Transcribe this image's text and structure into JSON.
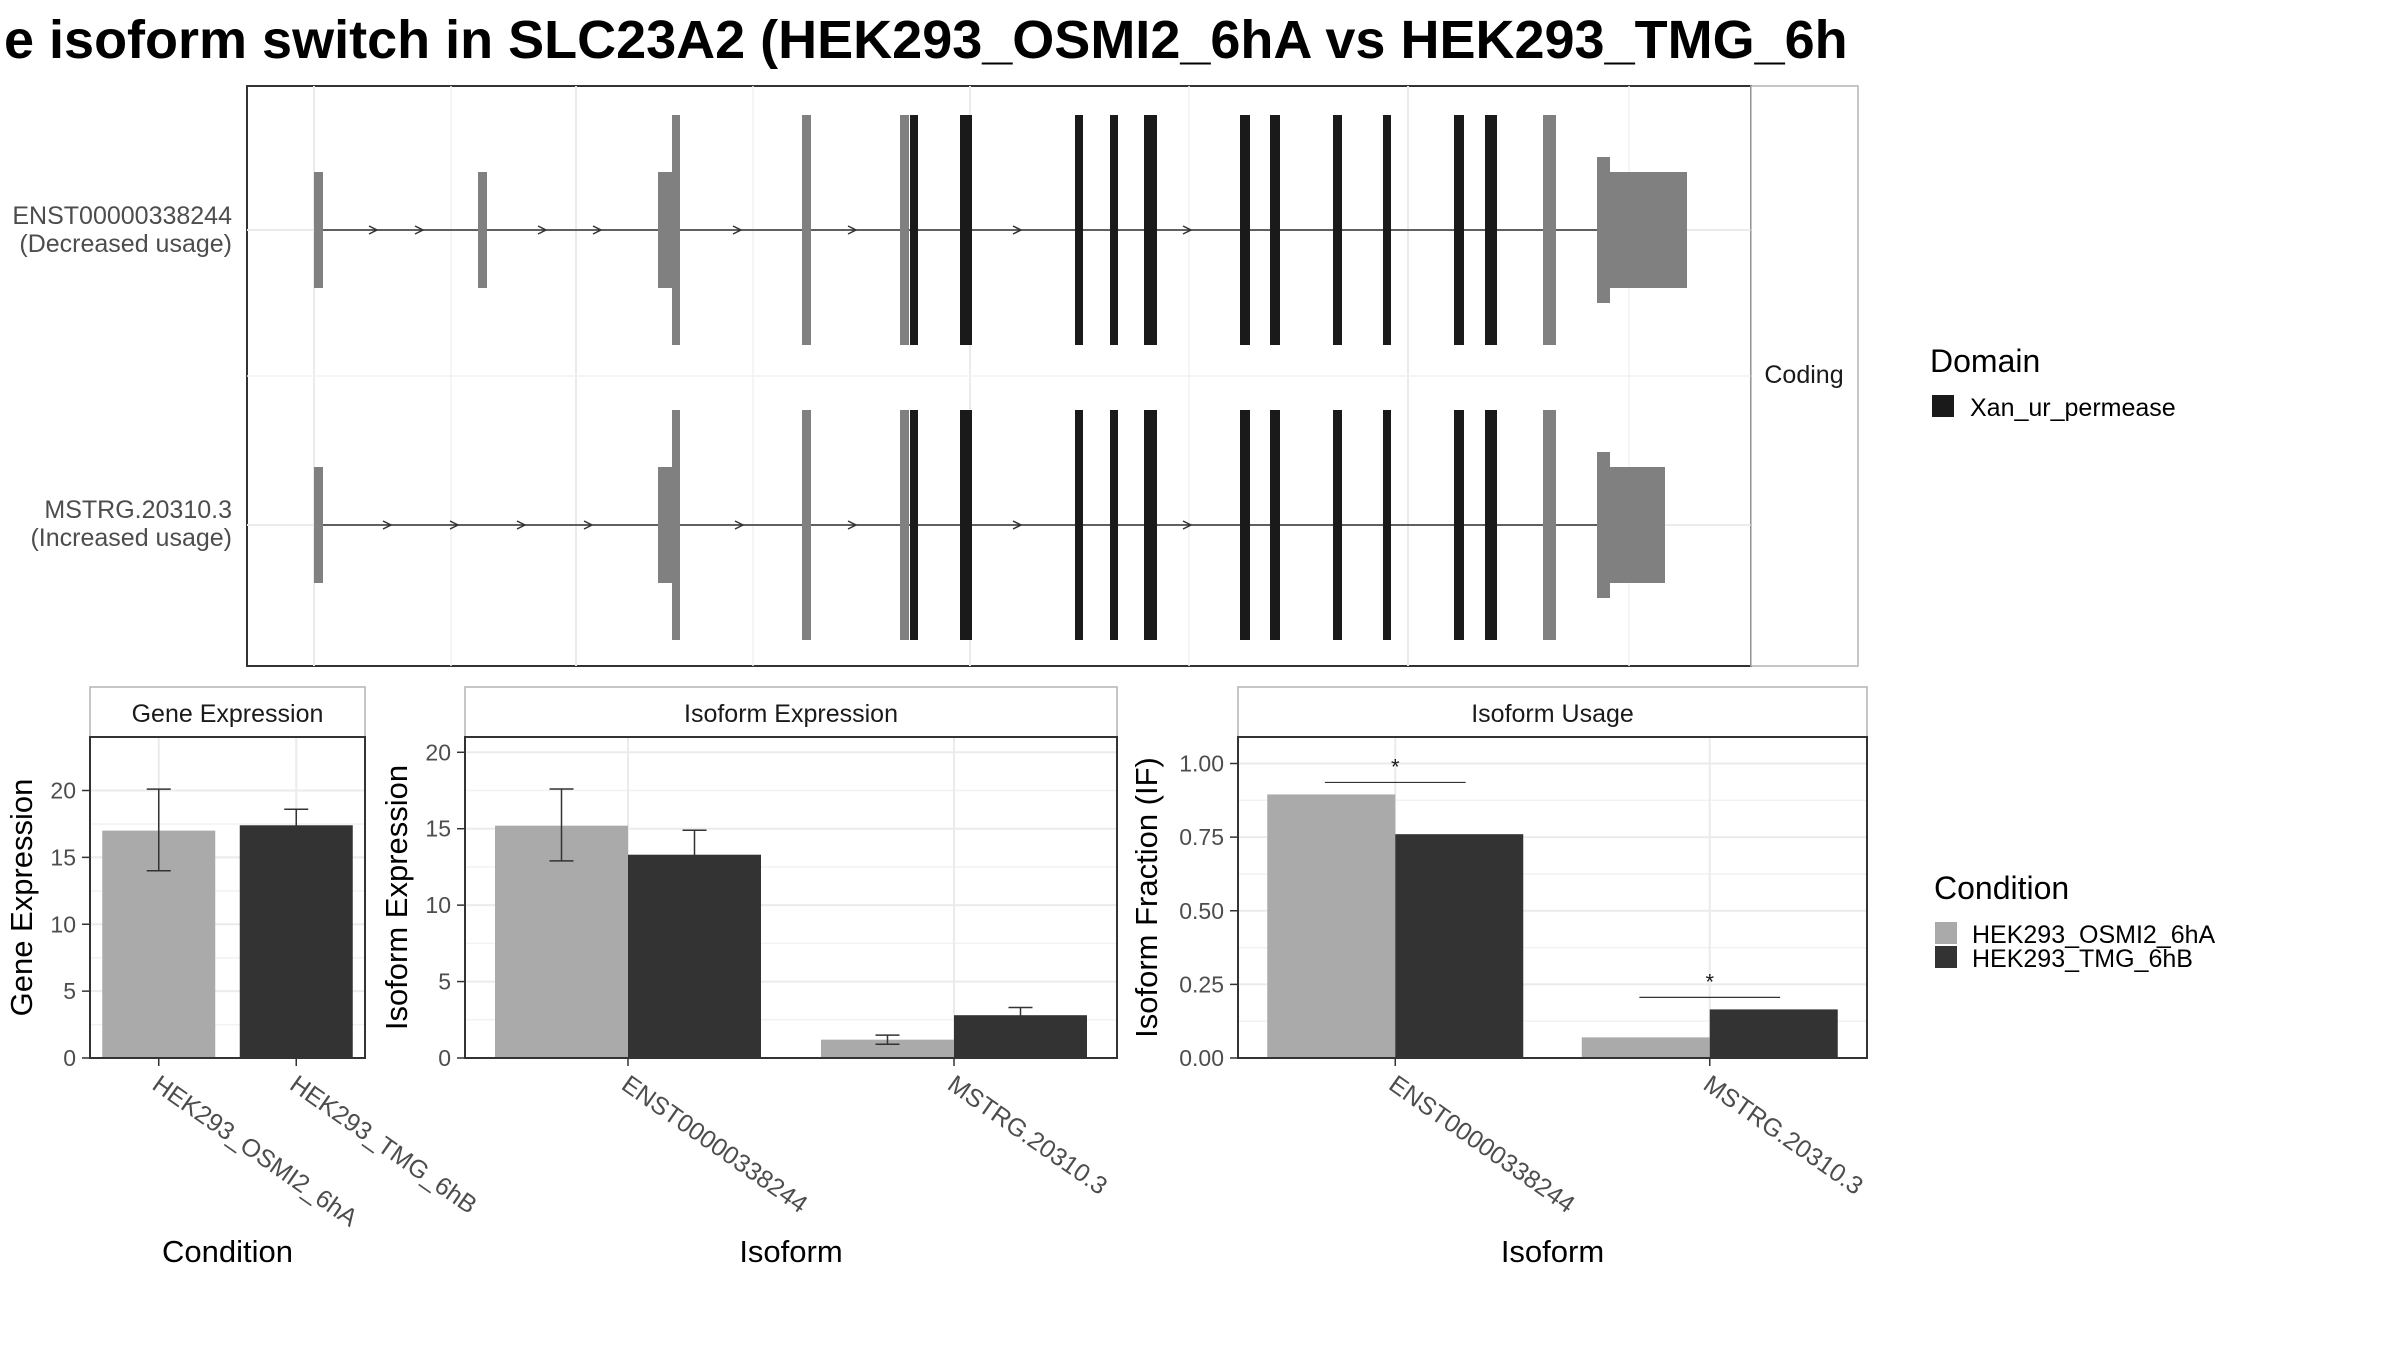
{
  "title": "e isoform switch in SLC23A2 (HEK293_OSMI2_6hA vs HEK293_TMG_6h",
  "colors": {
    "cond_a": "#aaaaaa",
    "cond_b": "#333333",
    "utr": "#808080",
    "domain": "#1a1a1a",
    "grid": "#ebebeb",
    "strip_bg": "#ffffff"
  },
  "transcript_panel": {
    "strip_label": "Coding",
    "isoforms": [
      {
        "name": "ENST00000338244",
        "usage": "(Decreased usage)"
      },
      {
        "name": "MSTRG.20310.3",
        "usage": "(Increased usage)"
      }
    ]
  },
  "legend_domain": {
    "title": "Domain",
    "items": [
      {
        "label": "Xan_ur_permease"
      }
    ]
  },
  "legend_condition": {
    "title": "Condition",
    "items": [
      {
        "label": "HEK293_OSMI2_6hA"
      },
      {
        "label": "HEK293_TMG_6hB"
      }
    ]
  },
  "chart_data": [
    {
      "type": "bar",
      "title": "Gene Expression",
      "xlabel": "Condition",
      "ylabel": "Gene Expression",
      "categories": [
        "HEK293_OSMI2_6hA",
        "HEK293_TMG_6hB"
      ],
      "values": [
        17.0,
        17.4
      ],
      "error_low": [
        14.0,
        16.2
      ],
      "error_high": [
        20.1,
        18.6
      ],
      "ylim": [
        0,
        24
      ],
      "yticks": [
        "0",
        "5",
        "10",
        "15",
        "20"
      ]
    },
    {
      "type": "bar",
      "title": "Isoform Expression",
      "xlabel": "Isoform",
      "ylabel": "Isoform Expression",
      "categories": [
        "ENST00000338244",
        "MSTRG.20310.3"
      ],
      "series": [
        {
          "name": "HEK293_OSMI2_6hA",
          "values": [
            15.2,
            1.2
          ],
          "error_low": [
            12.9,
            0.9
          ],
          "error_high": [
            17.6,
            1.5
          ]
        },
        {
          "name": "HEK293_TMG_6hB",
          "values": [
            13.3,
            2.8
          ],
          "error_low": [
            11.7,
            2.4
          ],
          "error_high": [
            14.9,
            3.3
          ]
        }
      ],
      "ylim": [
        0,
        21
      ],
      "yticks": [
        "0",
        "5",
        "10",
        "15",
        "20"
      ]
    },
    {
      "type": "bar",
      "title": "Isoform Usage",
      "xlabel": "Isoform",
      "ylabel": "Isoform Fraction (IF)",
      "categories": [
        "ENST00000338244",
        "MSTRG.20310.3"
      ],
      "series": [
        {
          "name": "HEK293_OSMI2_6hA",
          "values": [
            0.895,
            0.07
          ]
        },
        {
          "name": "HEK293_TMG_6hB",
          "values": [
            0.76,
            0.165
          ]
        }
      ],
      "significance": [
        "*",
        "*"
      ],
      "ylim": [
        0,
        1.09
      ],
      "yticks": [
        "0.00",
        "0.25",
        "0.50",
        "0.75",
        "1.00"
      ]
    }
  ]
}
